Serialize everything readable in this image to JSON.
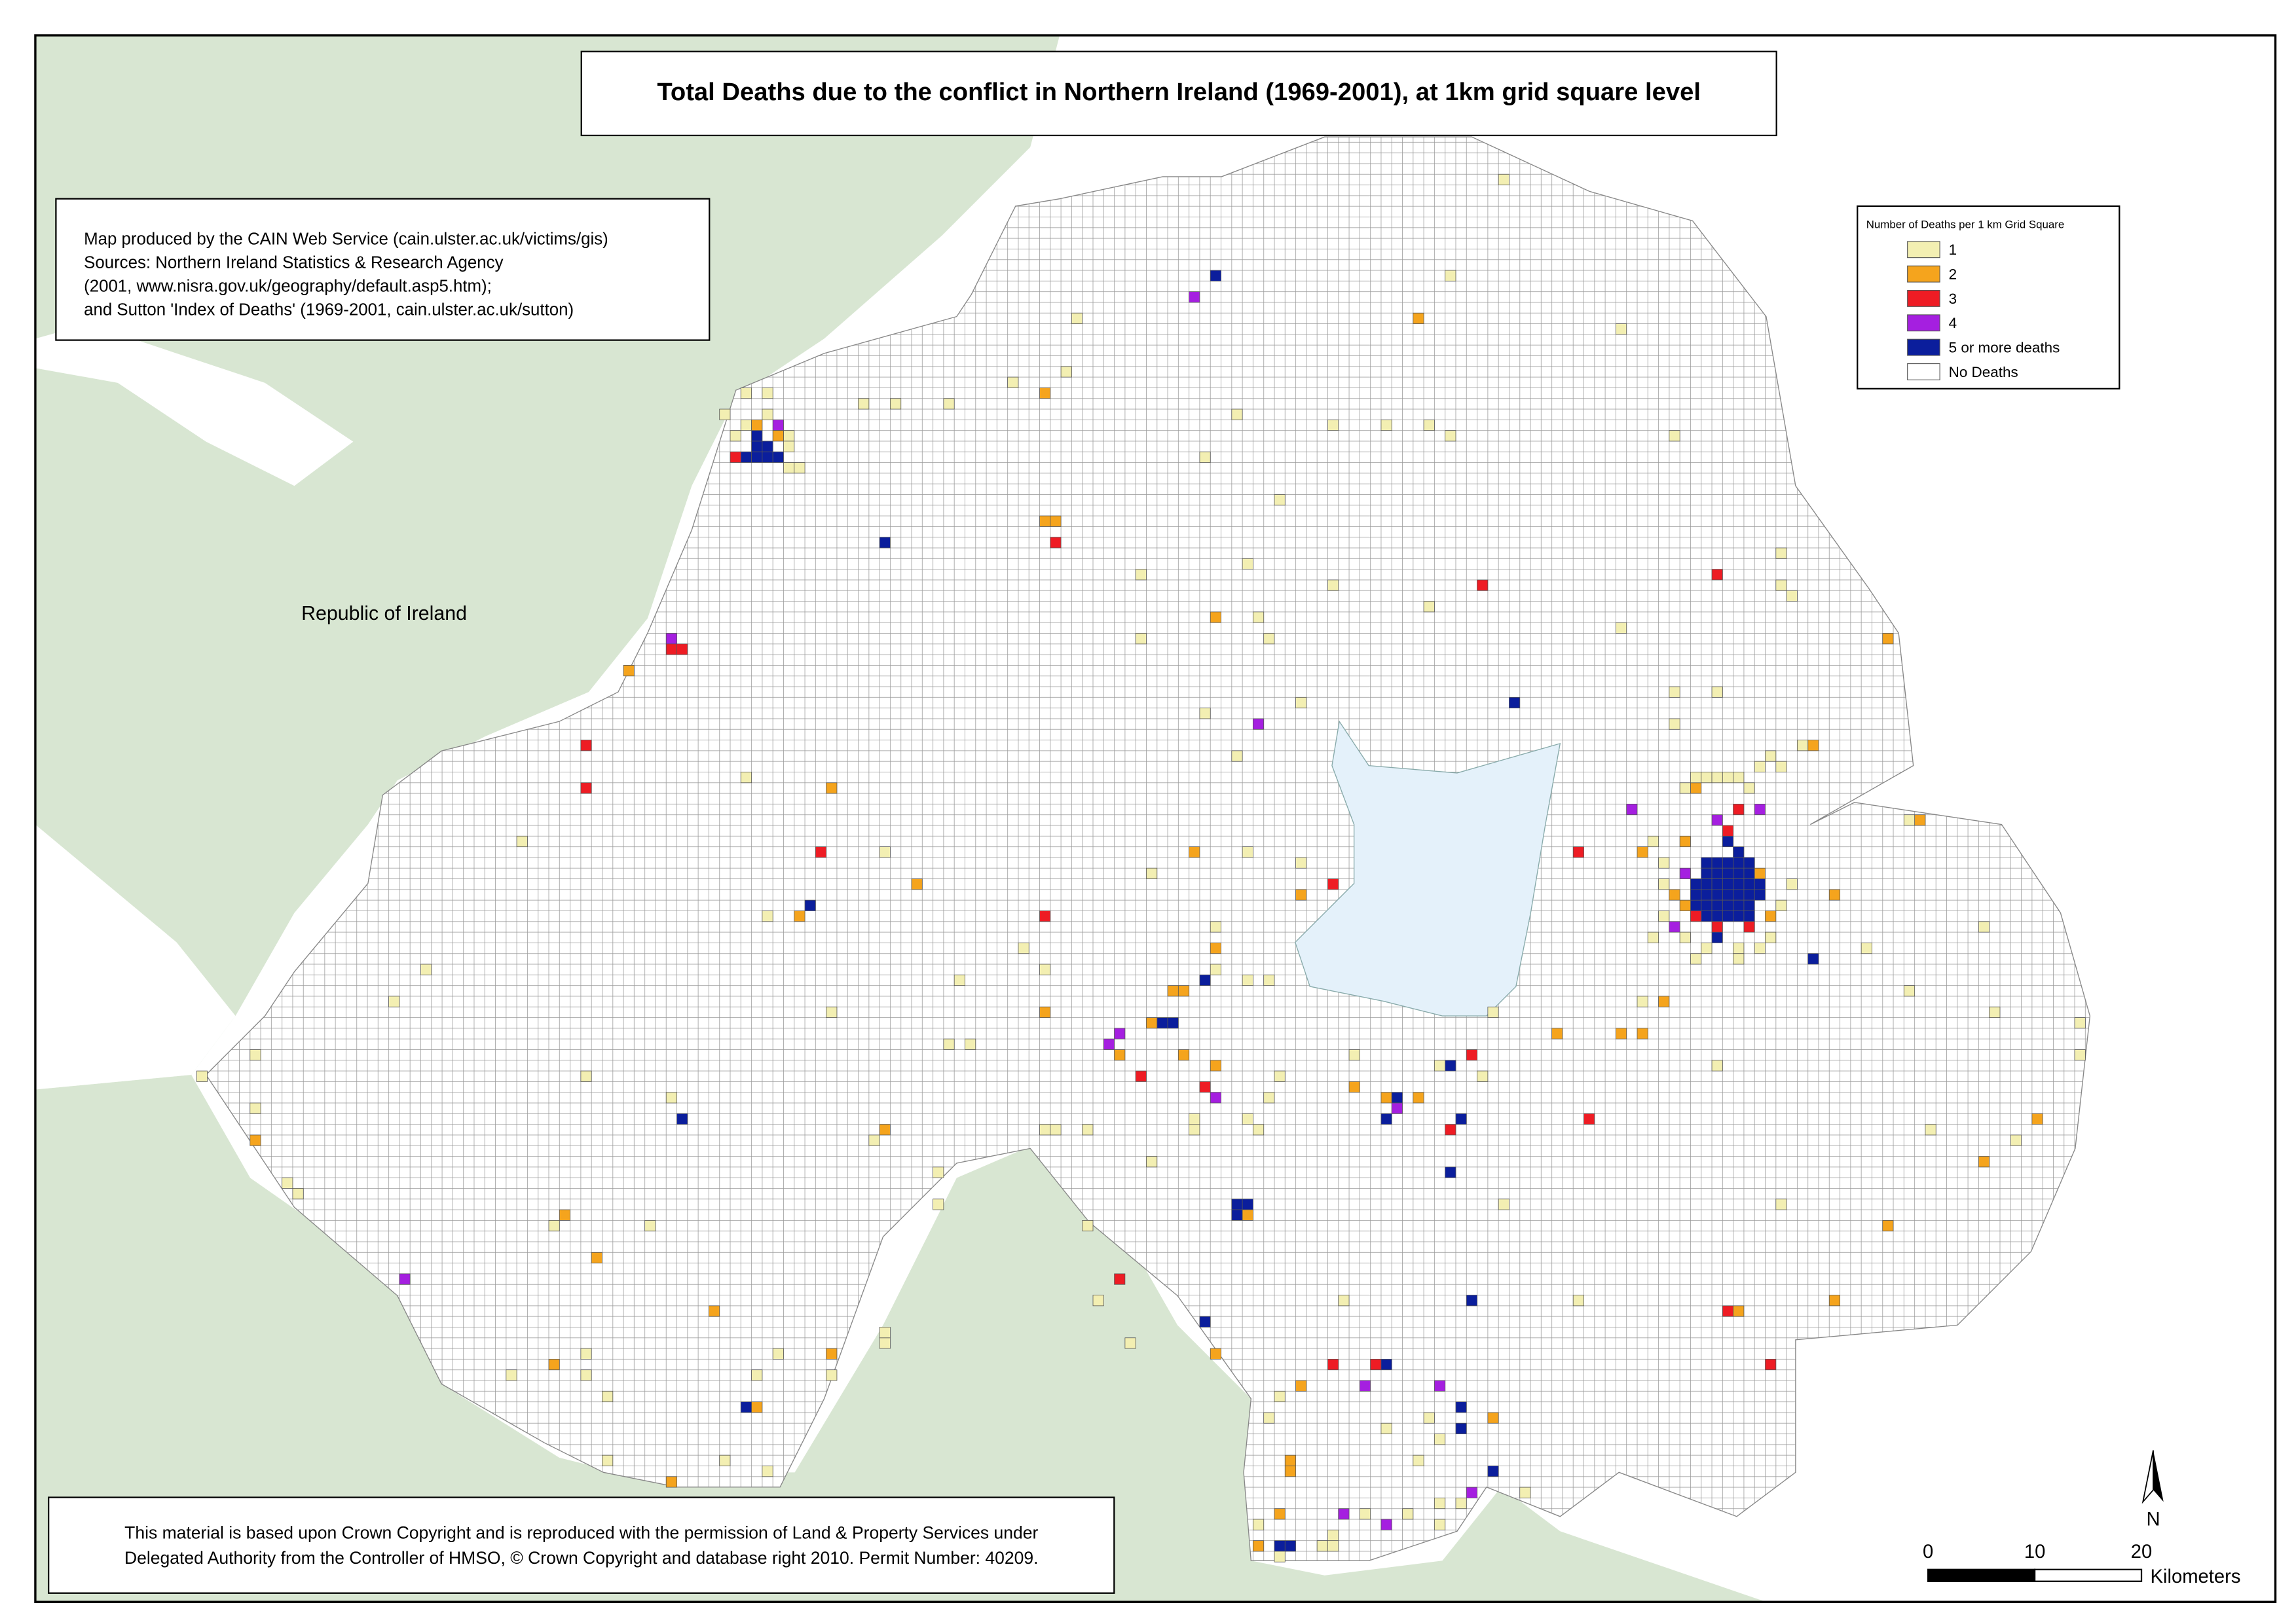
{
  "map": {
    "type": "grid-map",
    "title": "Total Deaths due to the conflict in Northern Ireland (1969-2001), at 1km grid square level",
    "info_box": [
      "Map produced by the CAIN Web Service (cain.ulster.ac.uk/victims/gis)",
      "Sources: Northern Ireland Statistics & Research Agency",
      "(2001, www.nisra.gov.uk/geography/default.asp5.htm);",
      "and Sutton 'Index of Deaths' (1969-2001, cain.ulster.ac.uk/sutton)"
    ],
    "region_label": "Republic of Ireland",
    "copyright": [
      "This material is based upon Crown Copyright and is reproduced with the permission of Land & Property Services under",
      "Delegated Authority from the Controller of HMSO, © Crown Copyright and database right 2010. Permit Number: 40209."
    ],
    "legend": {
      "title": "Number of Deaths per 1 km Grid Square",
      "classes": [
        {
          "deaths": 1,
          "color": "#f3efb2"
        },
        {
          "deaths": 2,
          "color": "#f5a41d"
        },
        {
          "deaths": 3,
          "color": "#ee1c24"
        },
        {
          "deaths": 4,
          "color": "#a51fe0"
        },
        {
          "deaths": 5,
          "label": "5 or more deaths",
          "color": "#0b1e9c"
        },
        {
          "label": "No Deaths",
          "color": "#ffffff"
        }
      ]
    },
    "north_arrow": "N",
    "scale_bar": {
      "ticks": [
        0,
        10,
        20
      ],
      "unit": "Kilometers"
    },
    "cell_columns": [
      "km_east",
      "km_south",
      "deaths"
    ],
    "cells": [
      [
        53,
        28,
        5
      ],
      [
        53,
        29,
        5
      ],
      [
        54,
        29,
        5
      ],
      [
        52,
        30,
        5
      ],
      [
        53,
        30,
        5
      ],
      [
        54,
        30,
        5
      ],
      [
        55,
        30,
        5
      ],
      [
        51,
        30,
        3
      ],
      [
        55,
        27,
        4
      ],
      [
        52,
        27,
        1
      ],
      [
        54,
        26,
        1
      ],
      [
        56,
        28,
        1
      ],
      [
        56,
        29,
        1
      ],
      [
        51,
        28,
        1
      ],
      [
        56,
        31,
        1
      ],
      [
        50,
        26,
        1
      ],
      [
        54,
        24,
        1
      ],
      [
        52,
        24,
        1
      ],
      [
        53,
        27,
        2
      ],
      [
        55,
        28,
        2
      ],
      [
        57,
        31,
        1
      ],
      [
        142,
        68,
        5
      ],
      [
        143,
        68,
        5
      ],
      [
        144,
        68,
        5
      ],
      [
        145,
        68,
        5
      ],
      [
        146,
        68,
        5
      ],
      [
        142,
        69,
        5
      ],
      [
        143,
        69,
        5
      ],
      [
        144,
        69,
        5
      ],
      [
        145,
        69,
        5
      ],
      [
        146,
        69,
        5
      ],
      [
        142,
        70,
        5
      ],
      [
        143,
        70,
        5
      ],
      [
        144,
        70,
        5
      ],
      [
        145,
        70,
        5
      ],
      [
        146,
        70,
        5
      ],
      [
        142,
        71,
        5
      ],
      [
        143,
        71,
        5
      ],
      [
        144,
        71,
        5
      ],
      [
        145,
        71,
        5
      ],
      [
        146,
        71,
        5
      ],
      [
        142,
        72,
        5
      ],
      [
        143,
        72,
        5
      ],
      [
        144,
        72,
        5
      ],
      [
        145,
        72,
        5
      ],
      [
        146,
        72,
        5
      ],
      [
        142,
        73,
        5
      ],
      [
        143,
        73,
        5
      ],
      [
        144,
        73,
        5
      ],
      [
        145,
        73,
        5
      ],
      [
        146,
        73,
        5
      ],
      [
        147,
        70,
        5
      ],
      [
        147,
        71,
        5
      ],
      [
        143,
        75,
        5
      ],
      [
        141,
        72,
        5
      ],
      [
        144,
        66,
        5
      ],
      [
        145,
        67,
        5
      ],
      [
        141,
        70,
        5
      ],
      [
        141,
        71,
        5
      ],
      [
        143,
        74,
        3
      ],
      [
        146,
        74,
        3
      ],
      [
        141,
        73,
        3
      ],
      [
        144,
        65,
        3
      ],
      [
        145,
        63,
        3
      ],
      [
        139,
        74,
        4
      ],
      [
        147,
        63,
        4
      ],
      [
        143,
        64,
        4
      ],
      [
        140,
        69,
        4
      ],
      [
        139,
        71,
        2
      ],
      [
        140,
        72,
        2
      ],
      [
        148,
        73,
        2
      ],
      [
        140,
        66,
        2
      ],
      [
        141,
        61,
        2
      ],
      [
        147,
        69,
        2
      ],
      [
        138,
        70,
        1
      ],
      [
        138,
        73,
        1
      ],
      [
        137,
        75,
        1
      ],
      [
        140,
        75,
        1
      ],
      [
        142,
        76,
        1
      ],
      [
        145,
        76,
        1
      ],
      [
        147,
        76,
        1
      ],
      [
        148,
        75,
        1
      ],
      [
        149,
        72,
        1
      ],
      [
        150,
        70,
        1
      ],
      [
        140,
        61,
        1
      ],
      [
        141,
        60,
        1
      ],
      [
        142,
        60,
        1
      ],
      [
        143,
        60,
        1
      ],
      [
        144,
        60,
        1
      ],
      [
        145,
        60,
        1
      ],
      [
        146,
        61,
        1
      ],
      [
        149,
        59,
        1
      ],
      [
        148,
        58,
        1
      ],
      [
        141,
        77,
        1
      ],
      [
        145,
        77,
        1
      ],
      [
        138,
        68,
        1
      ],
      [
        137,
        66,
        1
      ],
      [
        96,
        13,
        5
      ],
      [
        94,
        15,
        4
      ],
      [
        65,
        38,
        5
      ],
      [
        81,
        38,
        3
      ],
      [
        80,
        36,
        2
      ],
      [
        81,
        36,
        2
      ],
      [
        45,
        47,
        4
      ],
      [
        46,
        48,
        3
      ],
      [
        45,
        48,
        3
      ],
      [
        37,
        57,
        3
      ],
      [
        37,
        61,
        3
      ],
      [
        59,
        67,
        3
      ],
      [
        58,
        72,
        5
      ],
      [
        57,
        73,
        2
      ],
      [
        68,
        70,
        2
      ],
      [
        80,
        73,
        3
      ],
      [
        100,
        55,
        4
      ],
      [
        124,
        53,
        5
      ],
      [
        121,
        42,
        3
      ],
      [
        143,
        41,
        3
      ],
      [
        130,
        67,
        3
      ],
      [
        135,
        63,
        4
      ],
      [
        152,
        77,
        5
      ],
      [
        107,
        70,
        3
      ],
      [
        95,
        79,
        5
      ],
      [
        92,
        80,
        2
      ],
      [
        93,
        80,
        2
      ],
      [
        91,
        83,
        5
      ],
      [
        92,
        83,
        5
      ],
      [
        90,
        83,
        2
      ],
      [
        87,
        84,
        4
      ],
      [
        86,
        85,
        4
      ],
      [
        80,
        82,
        2
      ],
      [
        87,
        86,
        2
      ],
      [
        89,
        88,
        3
      ],
      [
        95,
        89,
        3
      ],
      [
        96,
        90,
        4
      ],
      [
        93,
        86,
        2
      ],
      [
        96,
        87,
        2
      ],
      [
        118,
        87,
        5
      ],
      [
        120,
        86,
        3
      ],
      [
        112,
        90,
        2
      ],
      [
        113,
        90,
        5
      ],
      [
        112,
        92,
        5
      ],
      [
        113,
        91,
        4
      ],
      [
        115,
        90,
        2
      ],
      [
        118,
        93,
        3
      ],
      [
        119,
        92,
        5
      ],
      [
        118,
        97,
        5
      ],
      [
        131,
        92,
        3
      ],
      [
        46,
        92,
        5
      ],
      [
        98,
        100,
        5
      ],
      [
        99,
        100,
        5
      ],
      [
        98,
        101,
        5
      ],
      [
        99,
        101,
        2
      ],
      [
        65,
        93,
        2
      ],
      [
        35,
        101,
        2
      ],
      [
        38,
        105,
        2
      ],
      [
        20,
        107,
        4
      ],
      [
        144,
        110,
        3
      ],
      [
        145,
        110,
        2
      ],
      [
        120,
        109,
        5
      ],
      [
        87,
        107,
        3
      ],
      [
        95,
        111,
        5
      ],
      [
        96,
        114,
        2
      ],
      [
        111,
        115,
        3
      ],
      [
        112,
        115,
        5
      ],
      [
        110,
        117,
        4
      ],
      [
        107,
        115,
        3
      ],
      [
        117,
        117,
        4
      ],
      [
        119,
        119,
        5
      ],
      [
        119,
        121,
        5
      ],
      [
        122,
        125,
        5
      ],
      [
        120,
        127,
        4
      ],
      [
        108,
        129,
        4
      ],
      [
        112,
        130,
        4
      ],
      [
        102,
        132,
        5
      ],
      [
        103,
        132,
        5
      ],
      [
        52,
        119,
        5
      ],
      [
        148,
        115,
        3
      ],
      [
        168,
        96,
        2
      ],
      [
        173,
        92,
        2
      ],
      [
        159,
        47,
        2
      ],
      [
        154,
        71,
        2
      ],
      [
        162,
        64,
        2
      ],
      [
        152,
        57,
        2
      ],
      [
        115,
        17,
        2
      ],
      [
        80,
        24,
        2
      ],
      [
        41,
        50,
        2
      ],
      [
        6,
        94,
        2
      ],
      [
        154,
        109,
        2
      ],
      [
        159,
        102,
        2
      ],
      [
        128,
        84,
        2
      ],
      [
        134,
        84,
        2
      ],
      [
        49,
        110,
        2
      ],
      [
        60,
        61,
        2
      ],
      [
        34,
        115,
        2
      ],
      [
        45,
        126,
        2
      ],
      [
        53,
        119,
        2
      ],
      [
        60,
        114,
        2
      ],
      [
        103,
        125,
        2
      ],
      [
        103,
        124,
        2
      ],
      [
        100,
        132,
        2
      ],
      [
        102,
        129,
        2
      ],
      [
        104,
        117,
        2
      ],
      [
        122,
        120,
        2
      ],
      [
        109,
        89,
        2
      ],
      [
        96,
        45,
        2
      ],
      [
        96,
        76,
        2
      ],
      [
        136,
        84,
        2
      ],
      [
        138,
        81,
        2
      ],
      [
        94,
        67,
        2
      ],
      [
        104,
        71,
        2
      ],
      [
        136,
        67,
        2
      ],
      [
        123,
        4,
        1
      ],
      [
        118,
        13,
        1
      ],
      [
        134,
        18,
        1
      ],
      [
        83,
        17,
        1
      ],
      [
        77,
        23,
        1
      ],
      [
        82,
        22,
        1
      ],
      [
        63,
        25,
        1
      ],
      [
        66,
        25,
        1
      ],
      [
        71,
        25,
        1
      ],
      [
        98,
        26,
        1
      ],
      [
        112,
        27,
        1
      ],
      [
        116,
        27,
        1
      ],
      [
        118,
        28,
        1
      ],
      [
        107,
        27,
        1
      ],
      [
        139,
        28,
        1
      ],
      [
        95,
        30,
        1
      ],
      [
        102,
        34,
        1
      ],
      [
        89,
        41,
        1
      ],
      [
        99,
        40,
        1
      ],
      [
        107,
        42,
        1
      ],
      [
        116,
        44,
        1
      ],
      [
        134,
        46,
        1
      ],
      [
        149,
        39,
        1
      ],
      [
        149,
        42,
        1
      ],
      [
        150,
        43,
        1
      ],
      [
        89,
        47,
        1
      ],
      [
        100,
        45,
        1
      ],
      [
        101,
        47,
        1
      ],
      [
        95,
        54,
        1
      ],
      [
        98,
        58,
        1
      ],
      [
        104,
        53,
        1
      ],
      [
        139,
        52,
        1
      ],
      [
        143,
        52,
        1
      ],
      [
        139,
        55,
        1
      ],
      [
        147,
        59,
        1
      ],
      [
        151,
        57,
        1
      ],
      [
        161,
        64,
        1
      ],
      [
        52,
        60,
        1
      ],
      [
        31,
        66,
        1
      ],
      [
        65,
        67,
        1
      ],
      [
        90,
        69,
        1
      ],
      [
        99,
        67,
        1
      ],
      [
        104,
        68,
        1
      ],
      [
        54,
        73,
        1
      ],
      [
        96,
        74,
        1
      ],
      [
        96,
        78,
        1
      ],
      [
        78,
        76,
        1
      ],
      [
        80,
        78,
        1
      ],
      [
        72,
        79,
        1
      ],
      [
        101,
        79,
        1
      ],
      [
        99,
        79,
        1
      ],
      [
        60,
        82,
        1
      ],
      [
        71,
        85,
        1
      ],
      [
        73,
        85,
        1
      ],
      [
        22,
        78,
        1
      ],
      [
        19,
        81,
        1
      ],
      [
        6,
        86,
        1
      ],
      [
        1,
        88,
        1
      ],
      [
        6,
        91,
        1
      ],
      [
        37,
        88,
        1
      ],
      [
        45,
        90,
        1
      ],
      [
        109,
        86,
        1
      ],
      [
        117,
        87,
        1
      ],
      [
        121,
        88,
        1
      ],
      [
        122,
        82,
        1
      ],
      [
        143,
        87,
        1
      ],
      [
        136,
        81,
        1
      ],
      [
        161,
        80,
        1
      ],
      [
        168,
        74,
        1
      ],
      [
        157,
        76,
        1
      ],
      [
        169,
        82,
        1
      ],
      [
        177,
        83,
        1
      ],
      [
        177,
        86,
        1
      ],
      [
        171,
        94,
        1
      ],
      [
        163,
        93,
        1
      ],
      [
        149,
        100,
        1
      ],
      [
        123,
        100,
        1
      ],
      [
        130,
        109,
        1
      ],
      [
        108,
        109,
        1
      ],
      [
        88,
        113,
        1
      ],
      [
        85,
        109,
        1
      ],
      [
        84,
        102,
        1
      ],
      [
        84,
        93,
        1
      ],
      [
        80,
        93,
        1
      ],
      [
        81,
        93,
        1
      ],
      [
        90,
        96,
        1
      ],
      [
        94,
        93,
        1
      ],
      [
        100,
        93,
        1
      ],
      [
        101,
        90,
        1
      ],
      [
        102,
        88,
        1
      ],
      [
        99,
        92,
        1
      ],
      [
        94,
        92,
        1
      ],
      [
        70,
        97,
        1
      ],
      [
        70,
        100,
        1
      ],
      [
        64,
        94,
        1
      ],
      [
        43,
        102,
        1
      ],
      [
        34,
        102,
        1
      ],
      [
        9,
        98,
        1
      ],
      [
        10,
        99,
        1
      ],
      [
        30,
        116,
        1
      ],
      [
        37,
        114,
        1
      ],
      [
        37,
        116,
        1
      ],
      [
        39,
        118,
        1
      ],
      [
        53,
        116,
        1
      ],
      [
        55,
        114,
        1
      ],
      [
        60,
        116,
        1
      ],
      [
        65,
        113,
        1
      ],
      [
        65,
        112,
        1
      ],
      [
        50,
        124,
        1
      ],
      [
        54,
        125,
        1
      ],
      [
        39,
        124,
        1
      ],
      [
        101,
        120,
        1
      ],
      [
        102,
        118,
        1
      ],
      [
        112,
        121,
        1
      ],
      [
        116,
        120,
        1
      ],
      [
        117,
        122,
        1
      ],
      [
        115,
        124,
        1
      ],
      [
        119,
        128,
        1
      ],
      [
        125,
        127,
        1
      ],
      [
        100,
        130,
        1
      ],
      [
        106,
        132,
        1
      ],
      [
        107,
        132,
        1
      ],
      [
        102,
        133,
        1
      ],
      [
        107,
        131,
        1
      ],
      [
        110,
        129,
        1
      ],
      [
        114,
        129,
        1
      ],
      [
        117,
        128,
        1
      ],
      [
        117,
        130,
        1
      ]
    ]
  }
}
